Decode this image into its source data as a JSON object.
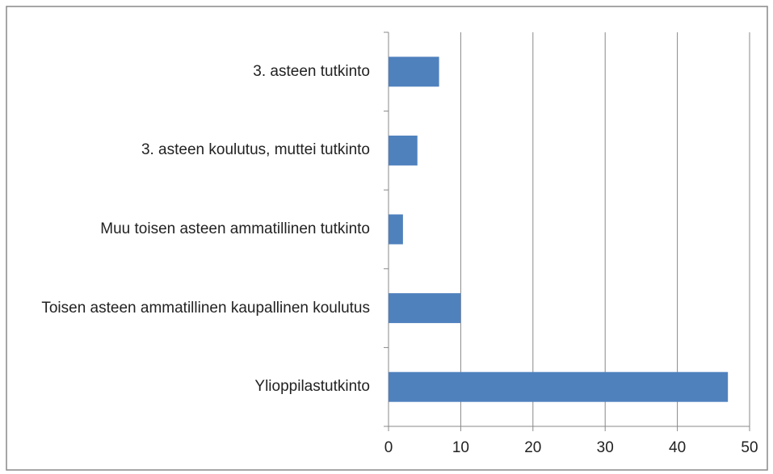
{
  "chart_data": {
    "type": "bar",
    "orientation": "horizontal",
    "categories": [
      "3. asteen tutkinto",
      "3. asteen koulutus, muttei tutkinto",
      "Muu toisen asteen ammatillinen tutkinto",
      "Toisen asteen ammatillinen kaupallinen koulutus",
      "Ylioppilastutkinto"
    ],
    "values": [
      7,
      4,
      2,
      10,
      47
    ],
    "color": "#4f81bd",
    "xlim": [
      0,
      50
    ],
    "xticks": [
      0,
      10,
      20,
      30,
      40,
      50
    ],
    "grid": true
  }
}
